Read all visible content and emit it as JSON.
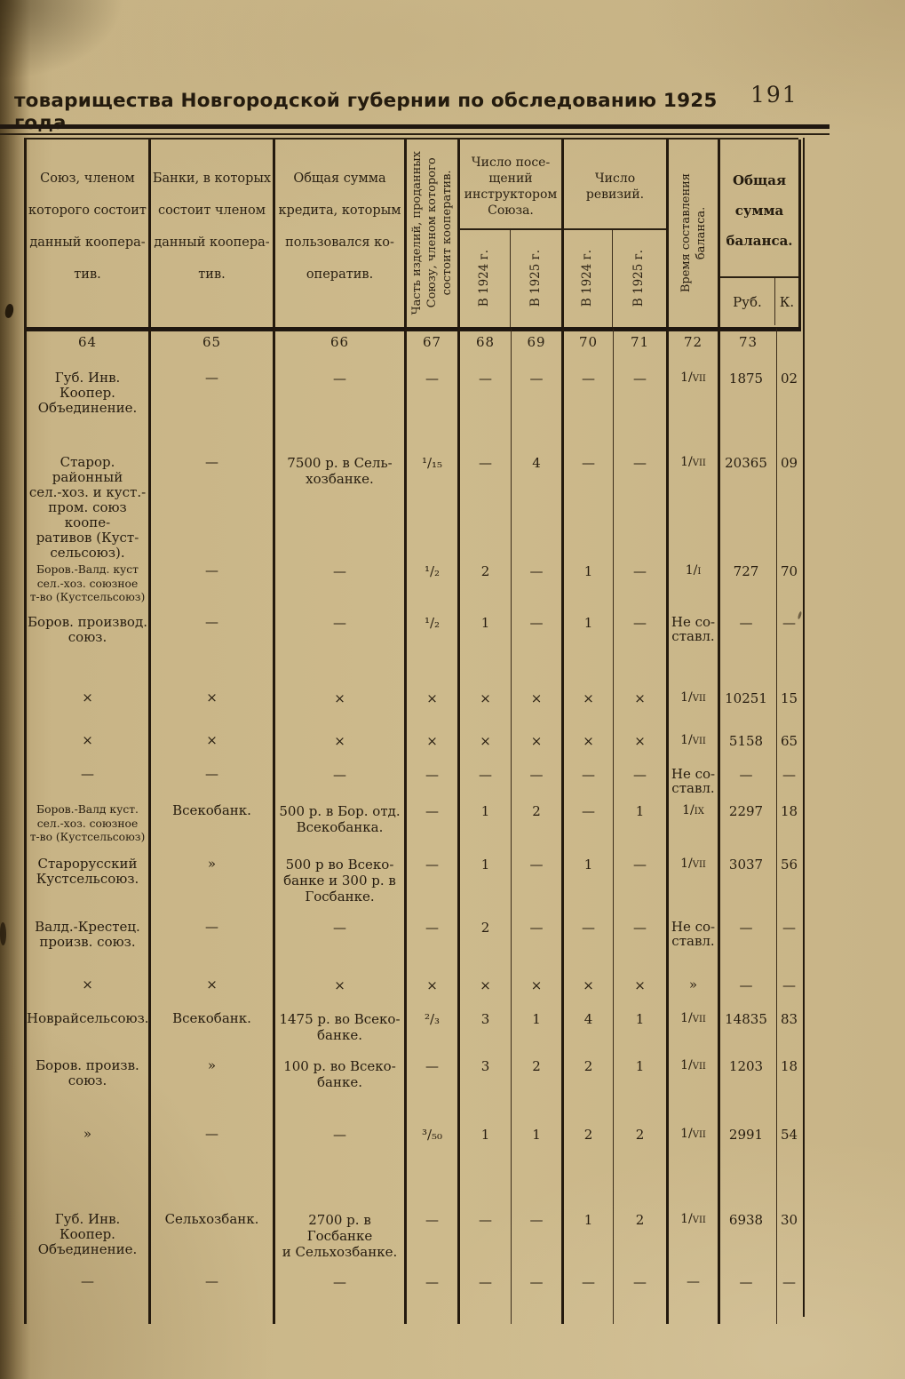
{
  "page": {
    "title": "товарищества Новгородской губернии по обследованию 1925 года.",
    "page_number": "191"
  },
  "table": {
    "headers": {
      "union": "Союз, членом\nкоторого состоит\nданный коопера-\nтив.",
      "banks": "Банки, в которых\nсостоит членом\nданный коопера-\nтив.",
      "credit": "Общая сумма\nкредита, которым\nпользовался ко-\nоператив.",
      "part_sold": "Часть изделий, проданных\nСоюзу, членом которого\nсостоит кооператив.",
      "visits": "Число посе-\nщений\nинструктором\nСоюза.",
      "revisions": "Число\nревизий.",
      "y1924": "В 1924 г.",
      "y1925": "В 1925 г.",
      "balance_time": "Время составления\nбаланса.",
      "balance_total": "Общая\nсумма\nбаланса.",
      "rub": "Руб.",
      "kop": "К."
    },
    "col_numbers": [
      "64",
      "65",
      "66",
      "67",
      "68",
      "69",
      "70",
      "71",
      "72",
      "73"
    ],
    "rows": [
      {
        "name": "Губ. Инв. Коопер.\nОбъединение.",
        "bank": "—",
        "credit": "—",
        "part": "—",
        "v24": "—",
        "v25": "—",
        "r24": "—",
        "r25": "—",
        "time": "1/VII",
        "rub": "1875",
        "kop": "02"
      },
      {
        "name": "Старор. районный\nсел.-хоз. и куст.-\nпром. союз коопе-\nративов (Куст-\nсельсоюз).",
        "bank": "—",
        "credit": "7500 р. в Сель-\nхозбанке.",
        "part": "¹/₁₅",
        "v24": "—",
        "v25": "4",
        "r24": "—",
        "r25": "—",
        "time": "1/VII",
        "rub": "20365",
        "kop": "09"
      },
      {
        "name": "Боров.-Валд. куст\nсел.-хоз. союзное\nт-во (Кустсельсоюз)",
        "bank": "—",
        "credit": "—",
        "part": "¹/₂",
        "v24": "2",
        "v25": "—",
        "r24": "1",
        "r25": "—",
        "time": "1/I",
        "rub": "727",
        "kop": "70"
      },
      {
        "name": "Боров. производ.\nсоюз.",
        "bank": "—",
        "credit": "—",
        "part": "¹/₂",
        "v24": "1",
        "v25": "—",
        "r24": "1",
        "r25": "—",
        "time": "Не со-\nставл.",
        "rub": "—",
        "kop": "—"
      },
      {
        "name": "×",
        "bank": "×",
        "credit": "×",
        "part": "×",
        "v24": "×",
        "v25": "×",
        "r24": "×",
        "r25": "×",
        "time": "1/VII",
        "rub": "10251",
        "kop": "15"
      },
      {
        "name": "×",
        "bank": "×",
        "credit": "×",
        "part": "×",
        "v24": "×",
        "v25": "×",
        "r24": "×",
        "r25": "×",
        "time": "1/VII",
        "rub": "5158",
        "kop": "65"
      },
      {
        "name": "—",
        "bank": "—",
        "credit": "—",
        "part": "—",
        "v24": "—",
        "v25": "—",
        "r24": "—",
        "r25": "—",
        "time": "Не со-\nставл.",
        "rub": "—",
        "kop": "—"
      },
      {
        "name": "Боров.-Валд куст.\nсел.-хоз. союзное\nт-во (Кустсельсоюз)",
        "bank": "Всекобанк.",
        "credit": "500 р. в Бор. отд.\nВсекобанка.",
        "part": "—",
        "v24": "1",
        "v25": "2",
        "r24": "—",
        "r25": "1",
        "time": "1/IX",
        "rub": "2297",
        "kop": "18"
      },
      {
        "name": "Старорусский\nКустсельсоюз.",
        "bank": "»",
        "credit": "500 р во Всеко-\nбанке и 300 р. в\nГосбанке.",
        "part": "—",
        "v24": "1",
        "v25": "—",
        "r24": "1",
        "r25": "—",
        "time": "1/VII",
        "rub": "3037",
        "kop": "56"
      },
      {
        "name": "Валд.-Крестец.\nпроизв. союз.",
        "bank": "—",
        "credit": "—",
        "part": "—",
        "v24": "2",
        "v25": "—",
        "r24": "—",
        "r25": "—",
        "time": "Не со-\nставл.",
        "rub": "—",
        "kop": "—"
      },
      {
        "name": "×",
        "bank": "×",
        "credit": "×",
        "part": "×",
        "v24": "×",
        "v25": "×",
        "r24": "×",
        "r25": "×",
        "time": "»",
        "rub": "—",
        "kop": "—"
      },
      {
        "name": "Новрайсельсоюз.",
        "bank": "Всекобанк.",
        "credit": "1475 р. во Всеко-\nбанке.",
        "part": "²/₃",
        "v24": "3",
        "v25": "1",
        "r24": "4",
        "r25": "1",
        "time": "1/VII",
        "rub": "14835",
        "kop": "83"
      },
      {
        "name": "Боров. произв.\nсоюз.",
        "bank": "»",
        "credit": "100 р. во Всеко-\nбанке.",
        "part": "—",
        "v24": "3",
        "v25": "2",
        "r24": "2",
        "r25": "1",
        "time": "1/VII",
        "rub": "1203",
        "kop": "18"
      },
      {
        "name": "»",
        "bank": "—",
        "credit": "—",
        "part": "³/₅₀",
        "v24": "1",
        "v25": "1",
        "r24": "2",
        "r25": "2",
        "time": "1/VII",
        "rub": "2991",
        "kop": "54"
      },
      {
        "name": "Губ. Инв. Коопер.\nОбъединение.",
        "bank": "Сельхозбанк.",
        "credit": "2700 р. в Госбанке\nи Сельхозбанке.",
        "part": "—",
        "v24": "—",
        "v25": "—",
        "r24": "1",
        "r25": "2",
        "time": "1/VII",
        "rub": "6938",
        "kop": "30"
      },
      {
        "name": "—",
        "bank": "—",
        "credit": "—",
        "part": "—",
        "v24": "—",
        "v25": "—",
        "r24": "—",
        "r25": "—",
        "time": "—",
        "rub": "—",
        "kop": "—"
      }
    ]
  }
}
